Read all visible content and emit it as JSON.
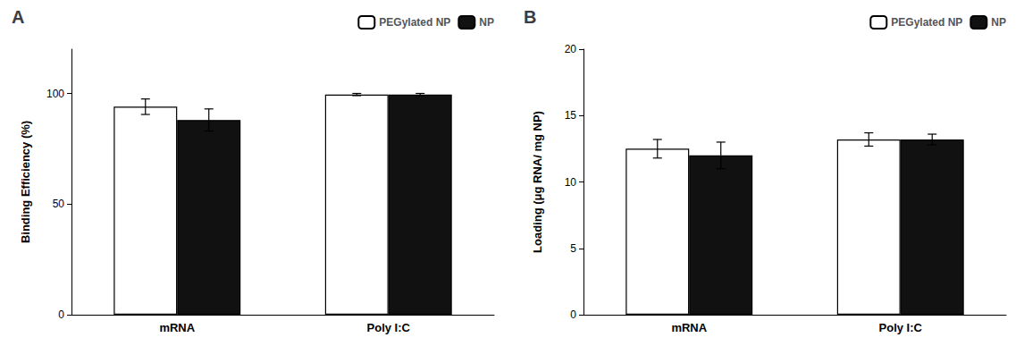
{
  "chart_data": [
    {
      "type": "bar",
      "title": "A",
      "categories": [
        "mRNA",
        "Poly I:C"
      ],
      "series": [
        {
          "name": "PEGylated NP",
          "color": "#ffffff",
          "values": [
            94,
            99.5
          ],
          "errors": [
            3.5,
            0.5
          ]
        },
        {
          "name": "NP",
          "color": "#111111",
          "values": [
            88,
            99.5
          ],
          "errors": [
            5.0,
            0.5
          ]
        }
      ],
      "ylabel": "Binding Efficiency (%)",
      "ylim": [
        0,
        120
      ],
      "yticks": [
        0,
        50,
        100
      ],
      "grid": false,
      "legend": "upper right"
    },
    {
      "type": "bar",
      "title": "B",
      "categories": [
        "mRNA",
        "Poly I:C"
      ],
      "series": [
        {
          "name": "PEGylated NP",
          "color": "#ffffff",
          "values": [
            12.5,
            13.2
          ],
          "errors": [
            0.7,
            0.5
          ]
        },
        {
          "name": "NP",
          "color": "#111111",
          "values": [
            12.0,
            13.2
          ],
          "errors": [
            1.0,
            0.4
          ]
        }
      ],
      "ylabel": "Loading (μg RNA/ mg NP)",
      "ylim": [
        0,
        20
      ],
      "yticks": [
        0,
        5,
        10,
        15,
        20
      ],
      "grid": false,
      "legend": "upper right"
    }
  ]
}
